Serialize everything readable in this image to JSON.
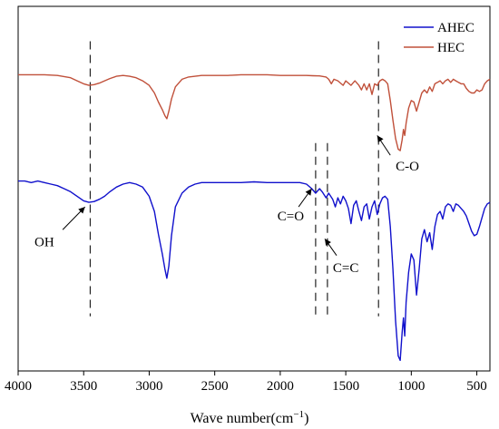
{
  "chart_data": {
    "type": "line",
    "xlabel": "Wave number(cm",
    "xlabel_sup": "−1",
    "xlabel_close": ")",
    "xlim": [
      4000,
      400
    ],
    "x_reversed": true,
    "x_ticks": [
      4000,
      3500,
      3000,
      2500,
      2000,
      1500,
      1000,
      500
    ],
    "y_ticks_visible": false,
    "grid": false,
    "legend_position": "top-right",
    "series": [
      {
        "name": "AHEC",
        "color": "#1010cc",
        "points": [
          [
            4000,
            0.2
          ],
          [
            3950,
            0.2
          ],
          [
            3900,
            0.19
          ],
          [
            3850,
            0.2
          ],
          [
            3800,
            0.19
          ],
          [
            3750,
            0.18
          ],
          [
            3700,
            0.17
          ],
          [
            3650,
            0.15
          ],
          [
            3600,
            0.13
          ],
          [
            3550,
            0.1
          ],
          [
            3500,
            0.07
          ],
          [
            3460,
            0.06
          ],
          [
            3420,
            0.065
          ],
          [
            3380,
            0.08
          ],
          [
            3340,
            0.1
          ],
          [
            3300,
            0.13
          ],
          [
            3250,
            0.16
          ],
          [
            3200,
            0.18
          ],
          [
            3150,
            0.19
          ],
          [
            3100,
            0.18
          ],
          [
            3050,
            0.16
          ],
          [
            3000,
            0.1
          ],
          [
            2960,
            0.0
          ],
          [
            2930,
            -0.15
          ],
          [
            2900,
            -0.28
          ],
          [
            2880,
            -0.38
          ],
          [
            2865,
            -0.44
          ],
          [
            2850,
            -0.36
          ],
          [
            2830,
            -0.16
          ],
          [
            2800,
            0.03
          ],
          [
            2750,
            0.12
          ],
          [
            2700,
            0.16
          ],
          [
            2650,
            0.18
          ],
          [
            2600,
            0.19
          ],
          [
            2500,
            0.19
          ],
          [
            2400,
            0.19
          ],
          [
            2300,
            0.19
          ],
          [
            2200,
            0.195
          ],
          [
            2100,
            0.19
          ],
          [
            2000,
            0.19
          ],
          [
            1950,
            0.19
          ],
          [
            1900,
            0.19
          ],
          [
            1850,
            0.19
          ],
          [
            1800,
            0.18
          ],
          [
            1760,
            0.15
          ],
          [
            1730,
            0.12
          ],
          [
            1700,
            0.15
          ],
          [
            1680,
            0.13
          ],
          [
            1650,
            0.09
          ],
          [
            1630,
            0.12
          ],
          [
            1600,
            0.08
          ],
          [
            1580,
            0.03
          ],
          [
            1560,
            0.09
          ],
          [
            1540,
            0.05
          ],
          [
            1520,
            0.1
          ],
          [
            1500,
            0.07
          ],
          [
            1480,
            0.02
          ],
          [
            1460,
            -0.08
          ],
          [
            1440,
            0.04
          ],
          [
            1420,
            0.07
          ],
          [
            1400,
            0.0
          ],
          [
            1380,
            -0.06
          ],
          [
            1360,
            0.03
          ],
          [
            1340,
            0.05
          ],
          [
            1320,
            -0.05
          ],
          [
            1300,
            0.03
          ],
          [
            1280,
            0.07
          ],
          [
            1260,
            -0.02
          ],
          [
            1240,
            0.05
          ],
          [
            1220,
            0.09
          ],
          [
            1200,
            0.1
          ],
          [
            1180,
            0.08
          ],
          [
            1160,
            -0.1
          ],
          [
            1140,
            -0.38
          ],
          [
            1120,
            -0.72
          ],
          [
            1100,
            -0.95
          ],
          [
            1085,
            -0.98
          ],
          [
            1070,
            -0.8
          ],
          [
            1060,
            -0.7
          ],
          [
            1050,
            -0.82
          ],
          [
            1040,
            -0.6
          ],
          [
            1020,
            -0.4
          ],
          [
            1000,
            -0.28
          ],
          [
            980,
            -0.32
          ],
          [
            960,
            -0.55
          ],
          [
            940,
            -0.38
          ],
          [
            920,
            -0.18
          ],
          [
            900,
            -0.12
          ],
          [
            880,
            -0.2
          ],
          [
            860,
            -0.14
          ],
          [
            840,
            -0.25
          ],
          [
            820,
            -0.1
          ],
          [
            800,
            -0.02
          ],
          [
            780,
            0.0
          ],
          [
            760,
            -0.05
          ],
          [
            740,
            0.03
          ],
          [
            720,
            0.05
          ],
          [
            700,
            0.04
          ],
          [
            680,
            0.0
          ],
          [
            660,
            0.05
          ],
          [
            640,
            0.04
          ],
          [
            620,
            0.02
          ],
          [
            600,
            0.0
          ],
          [
            580,
            -0.03
          ],
          [
            560,
            -0.08
          ],
          [
            540,
            -0.13
          ],
          [
            520,
            -0.16
          ],
          [
            500,
            -0.15
          ],
          [
            480,
            -0.1
          ],
          [
            460,
            -0.04
          ],
          [
            440,
            0.02
          ],
          [
            420,
            0.05
          ],
          [
            400,
            0.06
          ]
        ]
      },
      {
        "name": "HEC",
        "color": "#c0503a",
        "points": [
          [
            4000,
            0.9
          ],
          [
            3900,
            0.9
          ],
          [
            3800,
            0.9
          ],
          [
            3700,
            0.895
          ],
          [
            3600,
            0.88
          ],
          [
            3550,
            0.86
          ],
          [
            3500,
            0.84
          ],
          [
            3460,
            0.83
          ],
          [
            3420,
            0.835
          ],
          [
            3380,
            0.845
          ],
          [
            3340,
            0.86
          ],
          [
            3300,
            0.875
          ],
          [
            3250,
            0.89
          ],
          [
            3200,
            0.895
          ],
          [
            3150,
            0.89
          ],
          [
            3100,
            0.88
          ],
          [
            3050,
            0.86
          ],
          [
            3000,
            0.83
          ],
          [
            2960,
            0.78
          ],
          [
            2930,
            0.72
          ],
          [
            2900,
            0.67
          ],
          [
            2880,
            0.63
          ],
          [
            2865,
            0.61
          ],
          [
            2850,
            0.66
          ],
          [
            2830,
            0.74
          ],
          [
            2800,
            0.82
          ],
          [
            2750,
            0.87
          ],
          [
            2700,
            0.885
          ],
          [
            2600,
            0.895
          ],
          [
            2500,
            0.895
          ],
          [
            2400,
            0.895
          ],
          [
            2300,
            0.9
          ],
          [
            2200,
            0.9
          ],
          [
            2100,
            0.9
          ],
          [
            2000,
            0.895
          ],
          [
            1900,
            0.895
          ],
          [
            1800,
            0.895
          ],
          [
            1750,
            0.893
          ],
          [
            1700,
            0.892
          ],
          [
            1650,
            0.885
          ],
          [
            1630,
            0.87
          ],
          [
            1610,
            0.84
          ],
          [
            1590,
            0.87
          ],
          [
            1560,
            0.86
          ],
          [
            1520,
            0.83
          ],
          [
            1500,
            0.86
          ],
          [
            1460,
            0.83
          ],
          [
            1430,
            0.86
          ],
          [
            1400,
            0.83
          ],
          [
            1380,
            0.8
          ],
          [
            1360,
            0.84
          ],
          [
            1340,
            0.8
          ],
          [
            1320,
            0.84
          ],
          [
            1300,
            0.77
          ],
          [
            1280,
            0.84
          ],
          [
            1260,
            0.83
          ],
          [
            1240,
            0.86
          ],
          [
            1220,
            0.87
          ],
          [
            1200,
            0.86
          ],
          [
            1180,
            0.84
          ],
          [
            1160,
            0.73
          ],
          [
            1140,
            0.6
          ],
          [
            1120,
            0.48
          ],
          [
            1100,
            0.41
          ],
          [
            1085,
            0.4
          ],
          [
            1070,
            0.47
          ],
          [
            1060,
            0.54
          ],
          [
            1050,
            0.5
          ],
          [
            1040,
            0.58
          ],
          [
            1020,
            0.68
          ],
          [
            1000,
            0.73
          ],
          [
            980,
            0.72
          ],
          [
            960,
            0.66
          ],
          [
            940,
            0.72
          ],
          [
            920,
            0.78
          ],
          [
            900,
            0.8
          ],
          [
            880,
            0.78
          ],
          [
            860,
            0.82
          ],
          [
            840,
            0.79
          ],
          [
            820,
            0.84
          ],
          [
            800,
            0.85
          ],
          [
            780,
            0.86
          ],
          [
            760,
            0.84
          ],
          [
            740,
            0.86
          ],
          [
            720,
            0.87
          ],
          [
            700,
            0.85
          ],
          [
            680,
            0.87
          ],
          [
            660,
            0.86
          ],
          [
            640,
            0.85
          ],
          [
            620,
            0.84
          ],
          [
            600,
            0.84
          ],
          [
            580,
            0.81
          ],
          [
            560,
            0.79
          ],
          [
            540,
            0.78
          ],
          [
            520,
            0.78
          ],
          [
            500,
            0.8
          ],
          [
            480,
            0.79
          ],
          [
            460,
            0.8
          ],
          [
            440,
            0.84
          ],
          [
            420,
            0.86
          ],
          [
            400,
            0.87
          ]
        ]
      }
    ],
    "ylim": [
      -1.05,
      1.35
    ],
    "reference_lines": [
      {
        "x": 3450,
        "y_top": 1.12,
        "y_bottom": -0.69
      },
      {
        "x": 1730,
        "y_top": 0.45,
        "y_bottom": -0.69
      },
      {
        "x": 1640,
        "y_top": 0.45,
        "y_bottom": -0.69
      },
      {
        "x": 1250,
        "y_top": 1.12,
        "y_bottom": -0.69
      }
    ],
    "annotations": [
      {
        "label": "OH",
        "text_x": 3800,
        "text_y": -0.23,
        "arrow_from": [
          3660,
          -0.12
        ],
        "arrow_to": [
          3490,
          0.03
        ]
      },
      {
        "label": "C=O",
        "text_x": 1920,
        "text_y": -0.06,
        "arrow_from": [
          1860,
          0.03
        ],
        "arrow_to": [
          1760,
          0.15
        ]
      },
      {
        "label": "C=C",
        "text_x": 1500,
        "text_y": -0.4,
        "arrow_from": [
          1570,
          -0.29
        ],
        "arrow_to": [
          1660,
          -0.18
        ]
      },
      {
        "label": "C-O",
        "text_x": 1030,
        "text_y": 0.27,
        "arrow_from": [
          1160,
          0.37
        ],
        "arrow_to": [
          1260,
          0.5
        ]
      }
    ]
  }
}
